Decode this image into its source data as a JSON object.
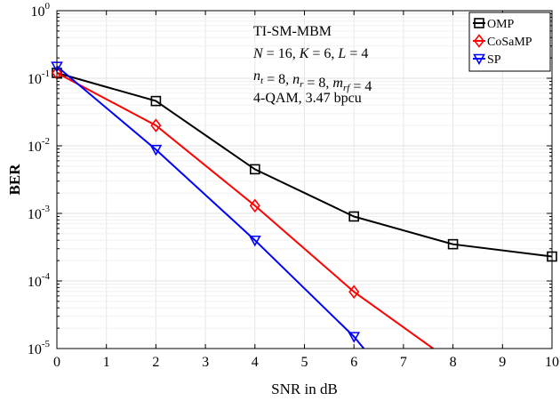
{
  "chart_data": {
    "type": "line",
    "xlabel": "SNR in dB",
    "ylabel": "BER",
    "xlim": [
      0,
      10
    ],
    "ylim": [
      1e-05,
      1
    ],
    "yscale": "log",
    "grid": true,
    "x_ticks": [
      "0",
      "1",
      "2",
      "3",
      "4",
      "5",
      "6",
      "7",
      "8",
      "9",
      "10"
    ],
    "y_ticks": [
      {
        "base": "10",
        "exp": "0"
      },
      {
        "base": "10",
        "exp": "-1"
      },
      {
        "base": "10",
        "exp": "-2"
      },
      {
        "base": "10",
        "exp": "-3"
      },
      {
        "base": "10",
        "exp": "-4"
      },
      {
        "base": "10",
        "exp": "-5"
      }
    ],
    "annotation": [
      "TI-SM-MBM",
      "N = 16, K = 6, L = 4",
      "n_t = 8, n_r = 8, m_rf = 4",
      "4-QAM, 3.47 bpcu"
    ],
    "legend_position": "top-right",
    "series": [
      {
        "name": "OMP",
        "color": "#000000",
        "marker": "square",
        "x": [
          0,
          2,
          4,
          6,
          8,
          10
        ],
        "y": [
          0.12,
          0.046,
          0.0045,
          0.0009,
          0.00035,
          0.00023
        ]
      },
      {
        "name": "CoSaMP",
        "color": "#ff0000",
        "marker": "diamond",
        "x": [
          0,
          2,
          4,
          6,
          7.6
        ],
        "y": [
          0.12,
          0.02,
          0.0013,
          6.9e-05,
          1e-05
        ]
      },
      {
        "name": "SP",
        "color": "#0000ff",
        "marker": "triangle-down",
        "x": [
          0,
          2,
          4,
          6,
          6.2
        ],
        "y": [
          0.15,
          0.0088,
          0.0004,
          1.5e-05,
          1e-05
        ]
      }
    ],
    "marker_points": {
      "OMP": 6,
      "CoSaMP": 4,
      "SP": 4
    }
  }
}
